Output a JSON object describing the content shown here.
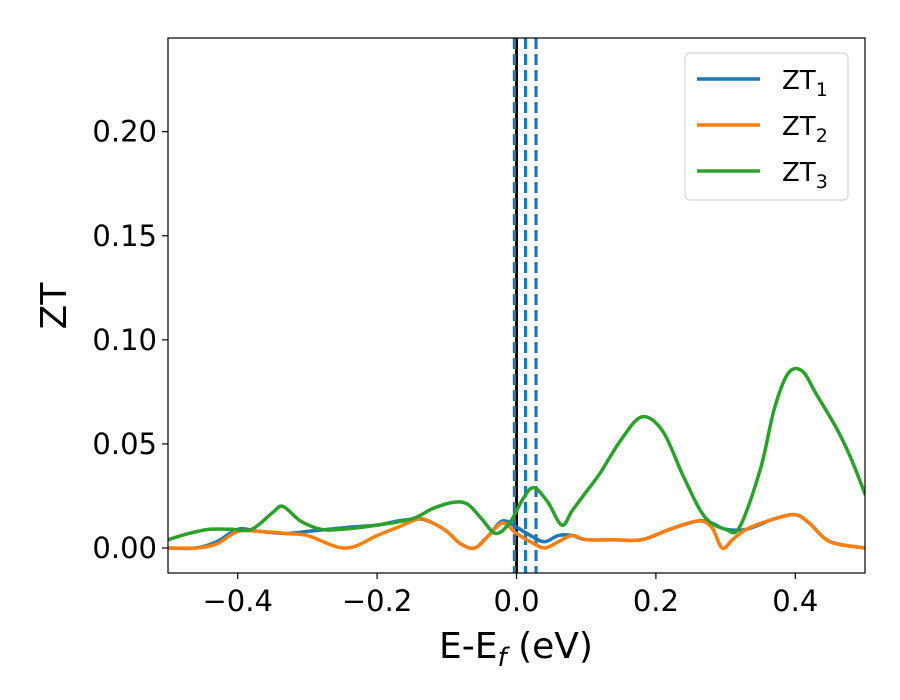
{
  "chart_data": {
    "type": "line",
    "title": "",
    "xlabel": "E-E",
    "xlabel_sub": "f",
    "xlabel_unit": " (eV)",
    "ylabel": "ZT",
    "xlim": [
      -0.5,
      0.5
    ],
    "ylim": [
      -0.012,
      0.245
    ],
    "xticks": [
      -0.4,
      -0.2,
      0.0,
      0.2,
      0.4
    ],
    "xtick_labels": [
      "−0.4",
      "−0.2",
      "0.0",
      "0.2",
      "0.4"
    ],
    "yticks": [
      0.0,
      0.05,
      0.1,
      0.15,
      0.2
    ],
    "ytick_labels": [
      "0.00",
      "0.05",
      "0.10",
      "0.15",
      "0.20"
    ],
    "grid": false,
    "legend_position": "top-right",
    "vertical_lines": [
      {
        "x": 0.0,
        "color": "#000000",
        "style": "solid"
      },
      {
        "x": -0.003,
        "color": "#1f77b4",
        "style": "dashed"
      },
      {
        "x": 0.013,
        "color": "#1f77b4",
        "style": "dashed"
      },
      {
        "x": 0.028,
        "color": "#1f77b4",
        "style": "dashed"
      }
    ],
    "series": [
      {
        "name": "ZT",
        "sub": "1",
        "color": "#1f77b4",
        "x": [
          -0.5,
          -0.46,
          -0.43,
          -0.4,
          -0.37,
          -0.33,
          -0.3,
          -0.27,
          -0.24,
          -0.2,
          -0.17,
          -0.14,
          -0.12,
          -0.1,
          -0.08,
          -0.06,
          -0.04,
          -0.02,
          0.0,
          0.02,
          0.04,
          0.06,
          0.08,
          0.1,
          0.14,
          0.18,
          0.22,
          0.26,
          0.28,
          0.3,
          0.33,
          0.37,
          0.4,
          0.42,
          0.45,
          0.5
        ],
        "y": [
          0.0,
          0.0,
          0.003,
          0.009,
          0.008,
          0.007,
          0.008,
          0.009,
          0.01,
          0.011,
          0.013,
          0.014,
          0.012,
          0.008,
          0.002,
          0.0,
          0.006,
          0.013,
          0.01,
          0.006,
          0.003,
          0.006,
          0.006,
          0.004,
          0.004,
          0.004,
          0.009,
          0.013,
          0.012,
          0.009,
          0.009,
          0.014,
          0.016,
          0.012,
          0.003,
          0.0
        ]
      },
      {
        "name": "ZT",
        "sub": "2",
        "color": "#ff7f0e",
        "x": [
          -0.5,
          -0.46,
          -0.43,
          -0.4,
          -0.37,
          -0.33,
          -0.3,
          -0.27,
          -0.25,
          -0.23,
          -0.2,
          -0.17,
          -0.14,
          -0.12,
          -0.1,
          -0.08,
          -0.06,
          -0.04,
          -0.02,
          0.0,
          0.02,
          0.04,
          0.06,
          0.08,
          0.1,
          0.14,
          0.18,
          0.22,
          0.26,
          0.28,
          0.295,
          0.31,
          0.33,
          0.37,
          0.4,
          0.42,
          0.45,
          0.5
        ],
        "y": [
          0.0,
          0.0,
          0.002,
          0.008,
          0.008,
          0.007,
          0.006,
          0.002,
          0.0,
          0.001,
          0.006,
          0.01,
          0.014,
          0.012,
          0.008,
          0.002,
          0.0,
          0.006,
          0.012,
          0.007,
          0.003,
          0.0,
          0.003,
          0.006,
          0.004,
          0.004,
          0.004,
          0.009,
          0.013,
          0.01,
          0.0,
          0.004,
          0.009,
          0.014,
          0.016,
          0.012,
          0.003,
          0.0
        ]
      },
      {
        "name": "ZT",
        "sub": "3",
        "color": "#2ca02c",
        "x": [
          -0.5,
          -0.47,
          -0.44,
          -0.41,
          -0.38,
          -0.35,
          -0.335,
          -0.31,
          -0.28,
          -0.25,
          -0.2,
          -0.15,
          -0.12,
          -0.09,
          -0.07,
          -0.05,
          -0.03,
          -0.01,
          0.01,
          0.025,
          0.045,
          0.065,
          0.08,
          0.1,
          0.12,
          0.15,
          0.18,
          0.21,
          0.24,
          0.27,
          0.3,
          0.32,
          0.35,
          0.37,
          0.39,
          0.41,
          0.43,
          0.46,
          0.48,
          0.5
        ],
        "y": [
          0.004,
          0.007,
          0.009,
          0.009,
          0.009,
          0.017,
          0.02,
          0.013,
          0.009,
          0.009,
          0.011,
          0.014,
          0.019,
          0.022,
          0.021,
          0.014,
          0.007,
          0.012,
          0.024,
          0.029,
          0.022,
          0.011,
          0.018,
          0.027,
          0.036,
          0.052,
          0.063,
          0.056,
          0.034,
          0.015,
          0.009,
          0.01,
          0.038,
          0.067,
          0.084,
          0.085,
          0.074,
          0.057,
          0.043,
          0.026
        ]
      }
    ]
  }
}
